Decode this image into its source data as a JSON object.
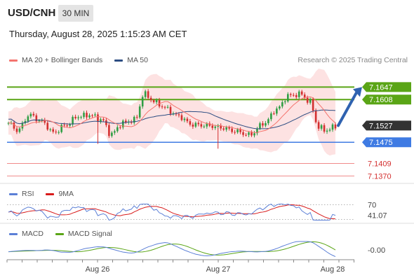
{
  "header": {
    "symbol": "USD/CNH",
    "timeframe": "30 MIN",
    "datetime": "Thursday, August 28, 2025 1:15:23 AM CET"
  },
  "credit": "Research © 2025 Trading Central",
  "colors": {
    "bollinger": "#f4746e",
    "band_fill": "#fde2e2",
    "ma50": "#2c4d82",
    "resistance": "#5aa516",
    "support": "#3f7be3",
    "rsi": "#5b7fd6",
    "rsi_ma": "#d81b1b",
    "macd": "#5b7fd6",
    "macd_signal": "#5aa516",
    "candle_up": "#2f9e44",
    "candle_down": "#d32f2f",
    "arrow": "#2f62b0",
    "last_price_box": "#333333"
  },
  "chart_data": [
    {
      "type": "candlestick",
      "legend": [
        {
          "name": "MA 20 + Bollinger Bands",
          "color": "#f4746e"
        },
        {
          "name": "MA 50",
          "color": "#2c4d82"
        }
      ],
      "ylim": [
        7.136,
        7.17
      ],
      "x_ticks": [
        "Aug 26",
        "Aug 27",
        "Aug 28"
      ],
      "levels": [
        {
          "value": 7.1647,
          "label": "7.1647",
          "kind": "resistance"
        },
        {
          "value": 7.1608,
          "label": "7.1608",
          "kind": "resistance"
        },
        {
          "value": 7.1527,
          "label": "7.1527",
          "kind": "last"
        },
        {
          "value": 7.1475,
          "label": "7.1475",
          "kind": "support"
        },
        {
          "value": 7.1409,
          "label": "7.1409",
          "kind": "target"
        },
        {
          "value": 7.137,
          "label": "7.1370",
          "kind": "target"
        }
      ],
      "last_price": 7.1527,
      "forecast_arrow": {
        "from": 7.1527,
        "to": 7.1647,
        "direction": "up"
      }
    },
    {
      "type": "line",
      "legend": [
        {
          "name": "RSI",
          "color": "#5b7fd6"
        },
        {
          "name": "9MA",
          "color": "#d81b1b"
        }
      ],
      "ylim": [
        25,
        75
      ],
      "reference_lines": [
        70,
        30
      ],
      "y_labels": [
        "70",
        "41.07"
      ],
      "last_value": 41.07
    },
    {
      "type": "line",
      "legend": [
        {
          "name": "MACD",
          "color": "#5b7fd6"
        },
        {
          "name": "MACD Signal",
          "color": "#5aa516"
        }
      ],
      "y_labels": [
        "-0.00"
      ],
      "last_value": -0.0
    }
  ]
}
